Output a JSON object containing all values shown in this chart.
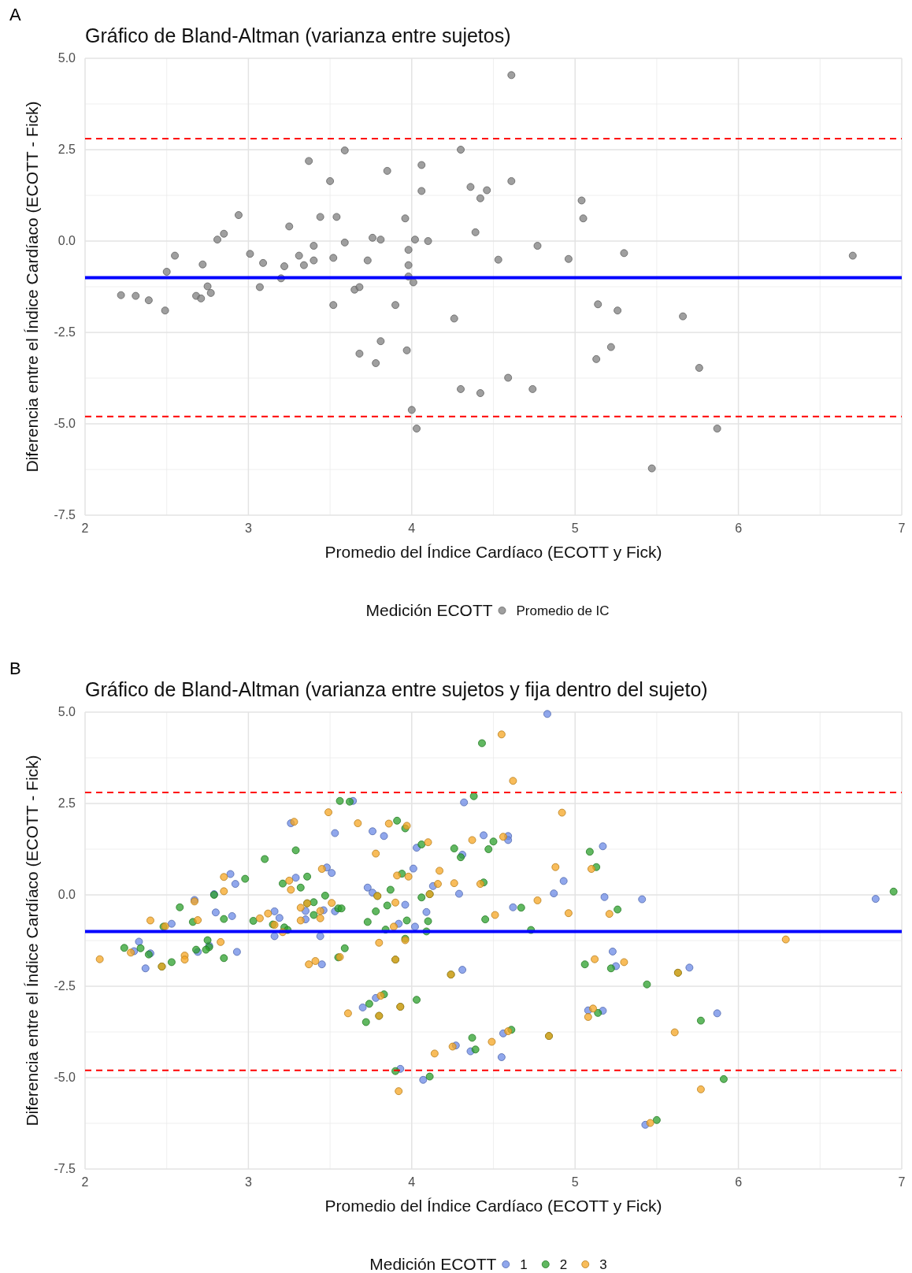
{
  "chart_data": [
    {
      "type": "scatter",
      "title": "Gráfico de Bland-Altman (varianza entre sujetos)",
      "xlabel": "Promedio del Índice Cardíaco (ECOTT y Fick)",
      "ylabel": "Diferencia entre el Índice Cardíaco (ECOTT - Fick)",
      "legend_title": "Medición ECOTT",
      "annotations": [
        "A"
      ],
      "xlim": [
        2,
        7
      ],
      "ylim": [
        -7.5,
        5
      ],
      "xticks": [
        2,
        3,
        4,
        5,
        6,
        7
      ],
      "yticks": [
        {
          "value": -7.5,
          "label": "-7.5"
        },
        {
          "value": -5,
          "label": "-5.0"
        },
        {
          "value": -2.5,
          "label": "-2.5"
        },
        {
          "value": 0,
          "label": "0.0"
        },
        {
          "value": 2.5,
          "label": "2.5"
        },
        {
          "value": 5,
          "label": "5.0"
        }
      ],
      "grid": true,
      "legend": "bottom",
      "marker": "circle",
      "ref_lines": [
        {
          "axis": "y",
          "value": 2.8,
          "color": "#ff0000",
          "line_style": "dashed"
        },
        {
          "axis": "y",
          "value": -1.0,
          "color": "#0000ff",
          "line_style": "solid"
        },
        {
          "axis": "y",
          "value": -4.8,
          "color": "#ff0000",
          "line_style": "dashed"
        }
      ],
      "series": [
        {
          "name": "Promedio de IC",
          "color": "#7f7f7f",
          "x": [
            2.22,
            2.31,
            2.39,
            2.49,
            2.5,
            2.55,
            2.68,
            2.71,
            2.72,
            2.75,
            2.77,
            2.81,
            2.85,
            2.94,
            3.01,
            3.07,
            3.09,
            3.2,
            3.22,
            3.25,
            3.31,
            3.34,
            3.37,
            3.4,
            3.4,
            3.44,
            3.5,
            3.52,
            3.52,
            3.54,
            3.59,
            3.59,
            3.65,
            3.68,
            3.68,
            3.73,
            3.76,
            3.78,
            3.81,
            3.81,
            3.85,
            3.9,
            3.96,
            3.97,
            3.98,
            3.98,
            3.98,
            4.0,
            4.01,
            4.02,
            4.03,
            4.06,
            4.06,
            4.1,
            4.26,
            4.3,
            4.3,
            4.36,
            4.39,
            4.42,
            4.42,
            4.46,
            4.53,
            4.59,
            4.61,
            4.61,
            4.74,
            4.77,
            4.96,
            5.04,
            5.05,
            5.14,
            5.13,
            5.22,
            5.26,
            5.3,
            5.47,
            5.66,
            5.76,
            5.87,
            6.7
          ],
          "values": [
            -1.48,
            -1.5,
            -1.62,
            -1.9,
            -0.84,
            -0.4,
            -1.5,
            -1.57,
            -0.64,
            -1.24,
            -1.42,
            0.04,
            0.2,
            0.71,
            -0.35,
            -1.26,
            -0.6,
            -1.02,
            -0.69,
            0.4,
            -0.4,
            -0.66,
            2.19,
            -0.53,
            -0.13,
            0.66,
            1.64,
            -0.46,
            -1.75,
            0.66,
            -0.04,
            2.48,
            -1.33,
            -1.26,
            -3.08,
            -0.53,
            0.09,
            -3.34,
            0.04,
            -2.74,
            1.92,
            -1.75,
            0.62,
            -2.99,
            -0.24,
            -0.66,
            -0.97,
            -4.62,
            -1.13,
            0.04,
            -5.13,
            2.08,
            1.37,
            0,
            -2.12,
            -4.05,
            2.5,
            1.48,
            0.24,
            1.17,
            -4.16,
            1.39,
            -0.51,
            -3.74,
            4.54,
            1.64,
            -4.05,
            -0.13,
            -0.49,
            1.11,
            0.62,
            -1.73,
            -3.23,
            -2.9,
            -1.9,
            -0.33,
            -6.22,
            -2.06,
            -3.47,
            -5.13,
            -0.4
          ]
        }
      ]
    },
    {
      "type": "scatter",
      "title": "Gráfico de Bland-Altman (varianza entre sujetos y fija dentro del sujeto)",
      "xlabel": "Promedio del Índice Cardíaco (ECOTT y Fick)",
      "ylabel": "Diferencia entre el Índice Cardíaco (ECOTT - Fick)",
      "legend_title": "Medición ECOTT",
      "annotations": [
        "B"
      ],
      "xlim": [
        2,
        7
      ],
      "ylim": [
        -7.5,
        5
      ],
      "xticks": [
        2,
        3,
        4,
        5,
        6,
        7
      ],
      "yticks": [
        {
          "value": -7.5,
          "label": "-7.5"
        },
        {
          "value": -5,
          "label": "-5.0"
        },
        {
          "value": -2.5,
          "label": "-2.5"
        },
        {
          "value": 0,
          "label": "0.0"
        },
        {
          "value": 2.5,
          "label": "2.5"
        },
        {
          "value": 5,
          "label": "5.0"
        }
      ],
      "grid": true,
      "legend": "bottom",
      "marker": "circle",
      "ref_lines": [
        {
          "axis": "y",
          "value": 2.8,
          "color": "#ff0000",
          "line_style": "dashed"
        },
        {
          "axis": "y",
          "value": -1.0,
          "color": "#0000ff",
          "line_style": "solid"
        },
        {
          "axis": "y",
          "value": -4.8,
          "color": "#ff0000",
          "line_style": "dashed"
        }
      ],
      "series": [
        {
          "name": "1",
          "color": "#6b8ae6",
          "x": [
            2.33,
            2.3,
            2.4,
            2.37,
            2.53,
            2.67,
            2.69,
            2.8,
            2.76,
            2.89,
            2.92,
            2.9,
            2.93,
            3.26,
            3.29,
            3.16,
            3.19,
            3.16,
            3.35,
            3.35,
            3.46,
            3.48,
            3.51,
            3.44,
            3.45,
            3.53,
            3.53,
            3.64,
            3.76,
            3.83,
            3.73,
            3.76,
            3.96,
            3.92,
            4.01,
            4.03,
            4.02,
            4.09,
            4.13,
            4.29,
            4.32,
            4.31,
            4.44,
            4.31,
            3.7,
            3.78,
            3.93,
            4.07,
            4.27,
            4.36,
            2.79,
            4.83,
            4.59,
            4.59,
            5.17,
            4.93,
            4.87,
            4.62,
            5.18,
            5.41,
            6.84,
            5.23,
            5.25,
            5.7,
            5.08,
            5.17,
            5.87,
            4.56,
            4.55,
            5.43
          ],
          "values": [
            -1.28,
            -1.54,
            -1.6,
            -2.01,
            -0.79,
            -0.14,
            -1.56,
            -0.48,
            -1.39,
            0.57,
            0.3,
            -0.58,
            -1.56,
            1.96,
            0.47,
            -0.45,
            -0.63,
            -1.13,
            -0.44,
            -0.67,
            -0.42,
            0.75,
            0.6,
            -1.13,
            -1.9,
            1.69,
            -0.45,
            2.57,
            1.74,
            1.61,
            0.2,
            0.06,
            -0.27,
            -0.79,
            0.72,
            1.29,
            -0.87,
            -0.47,
            0.24,
            0.03,
            2.53,
            1.1,
            1.63,
            -2.05,
            -3.08,
            -2.82,
            -4.76,
            -5.06,
            -4.12,
            -4.28,
            0.02,
            4.95,
            1.61,
            1.5,
            1.33,
            0.38,
            0.04,
            -0.34,
            -0.06,
            -0.12,
            -0.11,
            -1.55,
            -1.95,
            -1.99,
            -3.16,
            -3.17,
            -3.24,
            -3.79,
            -4.44,
            -6.29
          ]
        },
        {
          "name": "2",
          "color": "#2ca02c",
          "x": [
            2.24,
            2.34,
            2.39,
            2.53,
            2.58,
            2.66,
            2.68,
            2.75,
            2.76,
            2.74,
            2.79,
            2.85,
            2.85,
            2.98,
            3.03,
            3.1,
            3.15,
            3.21,
            3.22,
            3.24,
            3.29,
            3.32,
            3.36,
            3.4,
            3.4,
            3.47,
            3.55,
            3.57,
            3.55,
            3.59,
            3.56,
            3.62,
            3.73,
            3.78,
            3.85,
            3.87,
            3.91,
            3.96,
            3.94,
            3.84,
            3.97,
            4.06,
            4.06,
            4.1,
            4.09,
            4.26,
            4.3,
            4.38,
            4.43,
            4.47,
            4.44,
            4.45,
            3.72,
            3.74,
            3.83,
            3.9,
            4.03,
            4.11,
            4.37,
            4.39,
            2.48,
            2.47,
            3.36,
            3.79,
            3.96,
            3.8,
            3.93,
            4.11,
            3.9,
            4.24,
            5.09,
            5.13,
            4.67,
            5.26,
            6.95,
            4.5,
            4.73,
            5.06,
            5.22,
            5.44,
            5.14,
            5.77,
            4.61,
            5.5,
            5.91,
            5.63,
            4.84
          ],
          "values": [
            -1.45,
            -1.46,
            -1.63,
            -1.84,
            -0.34,
            -0.74,
            -1.5,
            -1.24,
            -1.43,
            -1.5,
            0.0,
            -0.66,
            -1.73,
            0.44,
            -0.71,
            0.98,
            -0.81,
            0.31,
            -0.89,
            -0.96,
            1.22,
            0.2,
            0.5,
            -0.2,
            -0.55,
            -0.02,
            -0.37,
            -0.37,
            -1.71,
            -1.46,
            2.57,
            2.55,
            -0.74,
            -0.45,
            -0.29,
            0.14,
            2.03,
            1.82,
            0.58,
            -0.95,
            -0.7,
            1.38,
            -0.07,
            -0.72,
            -1.0,
            1.27,
            1.03,
            2.7,
            4.15,
            1.25,
            0.34,
            -0.67,
            -3.48,
            -2.98,
            -2.72,
            -4.82,
            -2.87,
            -4.97,
            -3.91,
            -4.23,
            -0.87,
            -1.96,
            -0.23,
            -0.03,
            -1.2,
            -3.31,
            -3.06,
            0.02,
            -1.77,
            -2.18,
            1.18,
            0.76,
            -0.35,
            -0.4,
            0.09,
            1.46,
            -0.96,
            -1.9,
            -2.01,
            -2.45,
            -3.23,
            -3.44,
            -3.69,
            -6.16,
            -5.04,
            -2.13,
            -3.86
          ]
        },
        {
          "name": "3",
          "color": "#f5a623",
          "x": [
            2.09,
            2.28,
            2.4,
            2.49,
            2.61,
            2.61,
            2.67,
            2.69,
            2.83,
            2.85,
            2.85,
            3.07,
            3.12,
            3.16,
            3.21,
            3.25,
            3.26,
            3.28,
            3.32,
            3.32,
            3.44,
            3.44,
            3.37,
            3.41,
            3.45,
            3.49,
            3.51,
            3.56,
            3.67,
            3.78,
            3.86,
            3.97,
            3.9,
            3.89,
            3.8,
            3.91,
            3.98,
            4.1,
            4.17,
            4.16,
            4.26,
            4.37,
            4.42,
            3.61,
            3.81,
            3.92,
            4.14,
            4.25,
            2.47,
            3.36,
            3.79,
            3.96,
            3.8,
            3.93,
            4.11,
            3.9,
            4.24,
            5.63,
            4.84,
            4.55,
            4.62,
            4.92,
            4.56,
            4.88,
            5.1,
            4.77,
            4.51,
            4.96,
            5.21,
            6.29,
            5.12,
            5.3,
            5.11,
            5.08,
            4.49,
            4.59,
            5.61,
            5.77,
            5.46
          ],
          "values": [
            -1.76,
            -1.58,
            -0.7,
            -0.86,
            -1.66,
            -1.77,
            -0.18,
            -0.69,
            -1.29,
            0.49,
            0.1,
            -0.64,
            -0.51,
            -0.82,
            -1.02,
            0.39,
            0.14,
            2.0,
            -0.35,
            -0.7,
            -0.44,
            -0.64,
            -1.9,
            -1.81,
            0.71,
            2.26,
            -0.22,
            -1.7,
            1.96,
            1.13,
            1.95,
            1.89,
            -0.21,
            -0.87,
            -1.31,
            0.53,
            0.5,
            1.44,
            0.66,
            0.3,
            0.32,
            1.5,
            0.3,
            -3.24,
            -2.76,
            -5.37,
            -4.34,
            -4.15,
            -1.96,
            -0.23,
            -0.03,
            -1.24,
            -3.31,
            -3.06,
            0.02,
            -1.77,
            -2.18,
            -2.13,
            -3.86,
            4.39,
            3.12,
            2.25,
            1.59,
            0.76,
            0.71,
            -0.15,
            -0.55,
            -0.5,
            -0.52,
            -1.22,
            -1.76,
            -1.84,
            -3.11,
            -3.34,
            -4.02,
            -3.73,
            -3.76,
            -5.32,
            -6.24
          ]
        }
      ]
    }
  ]
}
